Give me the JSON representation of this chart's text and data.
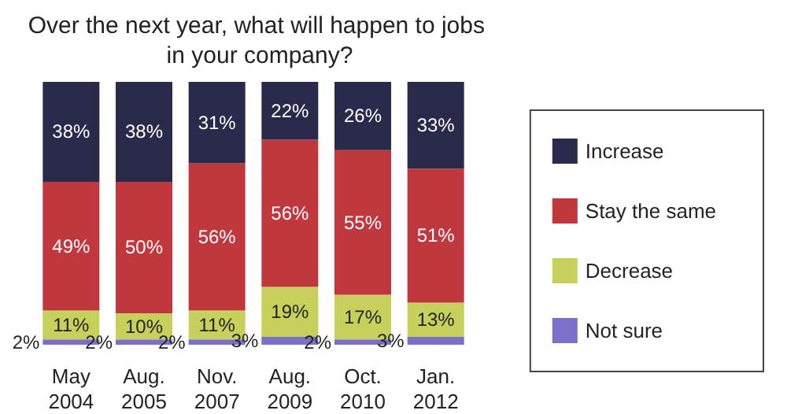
{
  "chart_data": {
    "type": "bar",
    "title": "Over the next year, what will happen to jobs in your company?",
    "categories": [
      "May 2004",
      "Aug. 2005",
      "Nov. 2007",
      "Aug. 2009",
      "Oct. 2010",
      "Jan. 2012"
    ],
    "stacked": true,
    "legend": "right",
    "tick_labels": "x",
    "series": [
      {
        "name": "Not sure",
        "color": "#7a6fc9",
        "values": [
          2,
          2,
          2,
          3,
          2,
          3
        ],
        "value_labels": [
          "2%",
          "2%",
          "2%",
          "3%",
          "2%",
          "3%"
        ]
      },
      {
        "name": "Decrease",
        "color": "#c6d05b",
        "values": [
          11,
          10,
          11,
          19,
          17,
          13
        ],
        "value_labels": [
          "11%",
          "10%",
          "11%",
          "19%",
          "17%",
          "13%"
        ]
      },
      {
        "name": "Stay the same",
        "color": "#c1373e",
        "values": [
          49,
          50,
          56,
          56,
          55,
          51
        ],
        "value_labels": [
          "49%",
          "50%",
          "56%",
          "56%",
          "55%",
          "51%"
        ]
      },
      {
        "name": "Increase",
        "color": "#29294a",
        "values": [
          38,
          38,
          31,
          22,
          26,
          33
        ],
        "value_labels": [
          "38%",
          "38%",
          "31%",
          "22%",
          "26%",
          "33%"
        ]
      }
    ]
  }
}
